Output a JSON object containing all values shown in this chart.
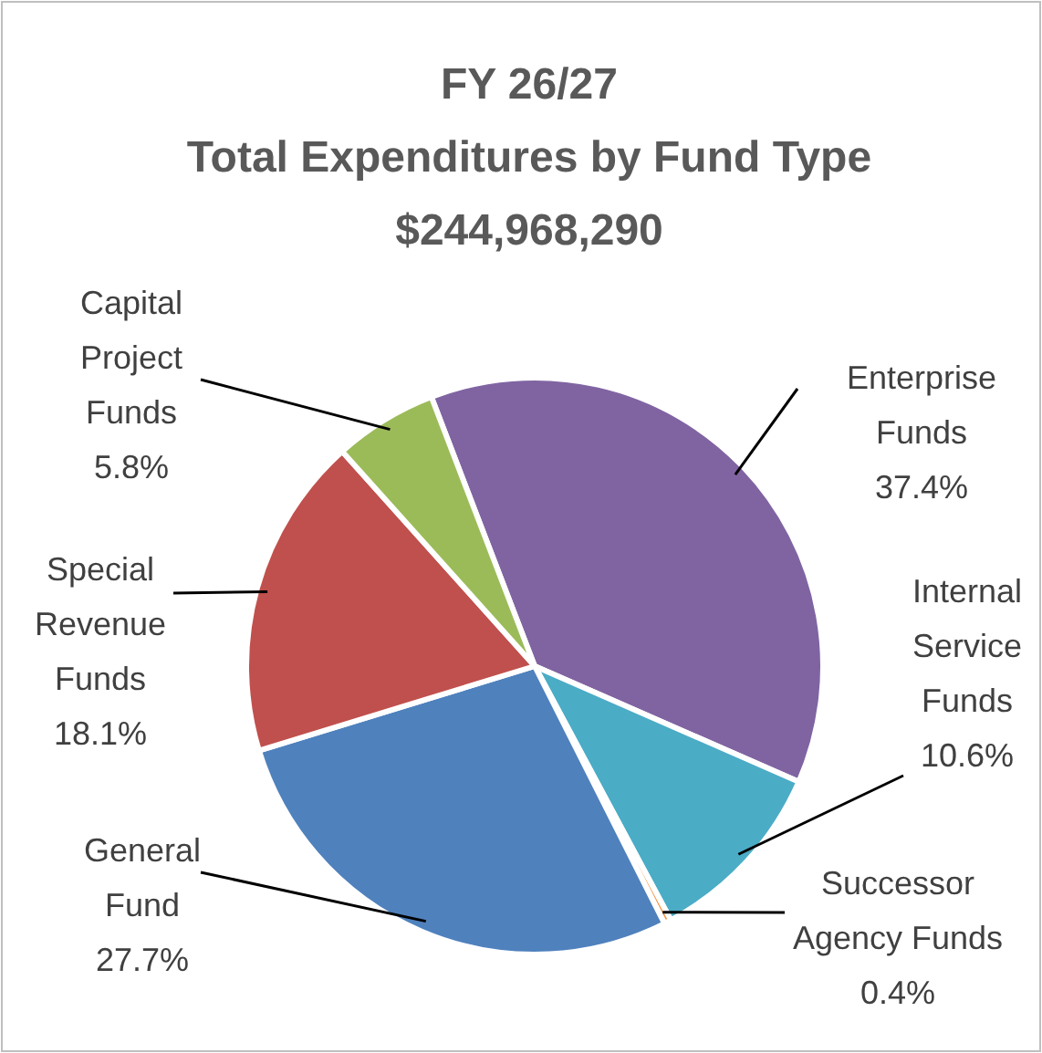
{
  "chart_data": {
    "type": "pie",
    "title": "FY 26/27\nTotal Expenditures by Fund Type",
    "subtitle": "$244,968,290",
    "categories": [
      "Enterprise Funds",
      "Internal Service Funds",
      "Successor Agency Funds",
      "General Fund",
      "Special Revenue Funds",
      "Capital Project Funds"
    ],
    "values": [
      37.4,
      10.6,
      0.4,
      27.7,
      18.1,
      5.8
    ],
    "value_labels": [
      "37.4%",
      "10.6%",
      "0.4%",
      "27.7%",
      "18.1%",
      "5.8%"
    ],
    "colors": [
      "#8064a2",
      "#4bacc6",
      "#f79646",
      "#4f81bd",
      "#c0504d",
      "#9bbb59"
    ]
  }
}
